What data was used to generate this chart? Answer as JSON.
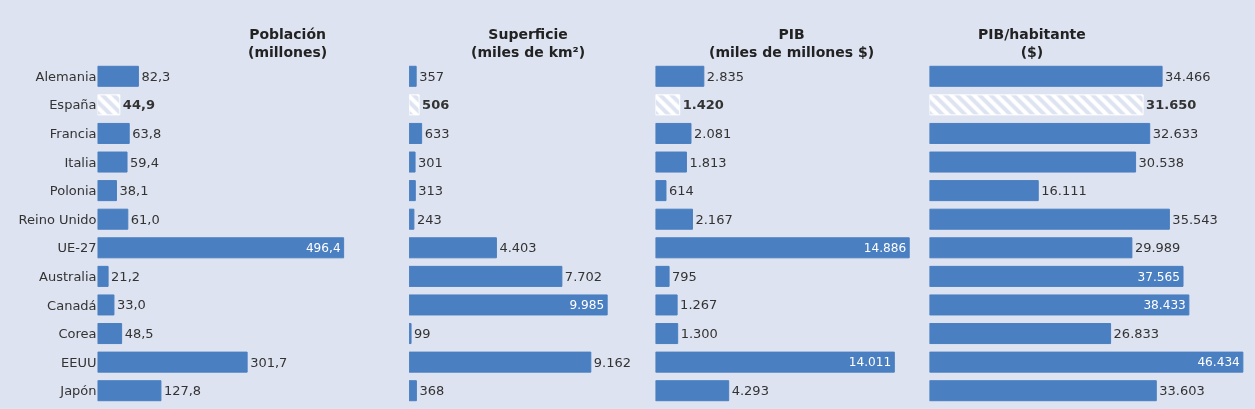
{
  "chart_data": [
    {
      "type": "bar",
      "orientation": "horizontal",
      "title": "Población\n(millones)",
      "categories": [
        "Alemania",
        "España",
        "Francia",
        "Italia",
        "Polonia",
        "Reino Unido",
        "UE-27",
        "Australia",
        "Canadá",
        "Corea",
        "EEUU",
        "Japón"
      ],
      "values": [
        82.3,
        44.9,
        63.8,
        59.4,
        38.1,
        61.0,
        496.4,
        21.2,
        33.0,
        48.5,
        301.7,
        127.8
      ],
      "value_labels": [
        "82,3",
        "44,9",
        "63,8",
        "59,4",
        "38,1",
        "61,0",
        "496,4",
        "21,2",
        "33,0",
        "48,5",
        "301,7",
        "127,8"
      ],
      "color": "#4a7fc1",
      "colors": [
        "#4a7fc1",
        "#ffffff",
        "#4a7fc1",
        "#4a7fc1",
        "#4a7fc1",
        "#4a7fc1",
        "#4a7fc1",
        "#4a7fc1",
        "#4a7fc1",
        "#4a7fc1",
        "#4a7fc1",
        "#4a7fc1"
      ],
      "tick_labels": "y",
      "grid": false
    },
    {
      "type": "bar",
      "orientation": "horizontal",
      "title": "Superficie\n(miles de km²)",
      "categories": [
        null,
        null,
        null,
        null,
        null,
        null,
        null,
        null,
        null,
        null,
        null,
        null
      ],
      "values": [
        357,
        506,
        633,
        301,
        313,
        243,
        4403,
        7702,
        9985,
        99,
        9162,
        368
      ],
      "value_labels": [
        "357",
        "506",
        "633",
        "301",
        "313",
        "243",
        "4.403",
        "7.702",
        "9.985",
        "99",
        "9.162",
        "368"
      ],
      "color": "#4a7fc1",
      "colors": [
        "#4a7fc1",
        "#ffffff",
        "#4a7fc1",
        "#4a7fc1",
        "#4a7fc1",
        "#4a7fc1",
        "#4a7fc1",
        "#4a7fc1",
        "#4a7fc1",
        "#4a7fc1",
        "#4a7fc1",
        "#4a7fc1"
      ],
      "tick_labels": false,
      "grid": false
    },
    {
      "type": "bar",
      "orientation": "horizontal",
      "title": "PIB\n(miles de millones $)",
      "categories": [
        null,
        null,
        null,
        null,
        null,
        null,
        null,
        null,
        null,
        null,
        null,
        null
      ],
      "values": [
        2835,
        1420,
        2081,
        1813,
        614,
        2167,
        14886,
        795,
        1267,
        1300,
        14011,
        4293
      ],
      "value_labels": [
        "2.835",
        "1.420",
        "2.081",
        "1.813",
        "614",
        "2.167",
        "14.886",
        "795",
        "1.267",
        "1.300",
        "14.011",
        "4.293"
      ],
      "color": "#4a7fc1",
      "colors": [
        "#4a7fc1",
        "#ffffff",
        "#4a7fc1",
        "#4a7fc1",
        "#4a7fc1",
        "#4a7fc1",
        "#4a7fc1",
        "#4a7fc1",
        "#4a7fc1",
        "#4a7fc1",
        "#4a7fc1",
        "#4a7fc1"
      ],
      "tick_labels": false,
      "grid": false
    },
    {
      "type": "bar",
      "orientation": "horizontal",
      "title": "PIB/habitante\n($)",
      "categories": [
        null,
        null,
        null,
        null,
        null,
        null,
        null,
        null,
        null,
        null,
        null,
        null
      ],
      "values": [
        34466,
        31650,
        32633,
        30538,
        16111,
        35543,
        29989,
        37565,
        38433,
        26833,
        46434,
        33603
      ],
      "value_labels": [
        "34.466",
        "31.650",
        "32.633",
        "30.538",
        "16.111",
        "35.543",
        "29.989",
        "37.565",
        "38.433",
        "26.833",
        "46.434",
        "33.603"
      ],
      "color": "#4a7fc1",
      "colors": [
        "#4a7fc1",
        "#ffffff",
        "#4a7fc1",
        "#4a7fc1",
        "#4a7fc1",
        "#4a7fc1",
        "#4a7fc1",
        "#4a7fc1",
        "#4a7fc1",
        "#4a7fc1",
        "#4a7fc1",
        "#4a7fc1"
      ],
      "tick_labels": false,
      "grid": false
    }
  ]
}
